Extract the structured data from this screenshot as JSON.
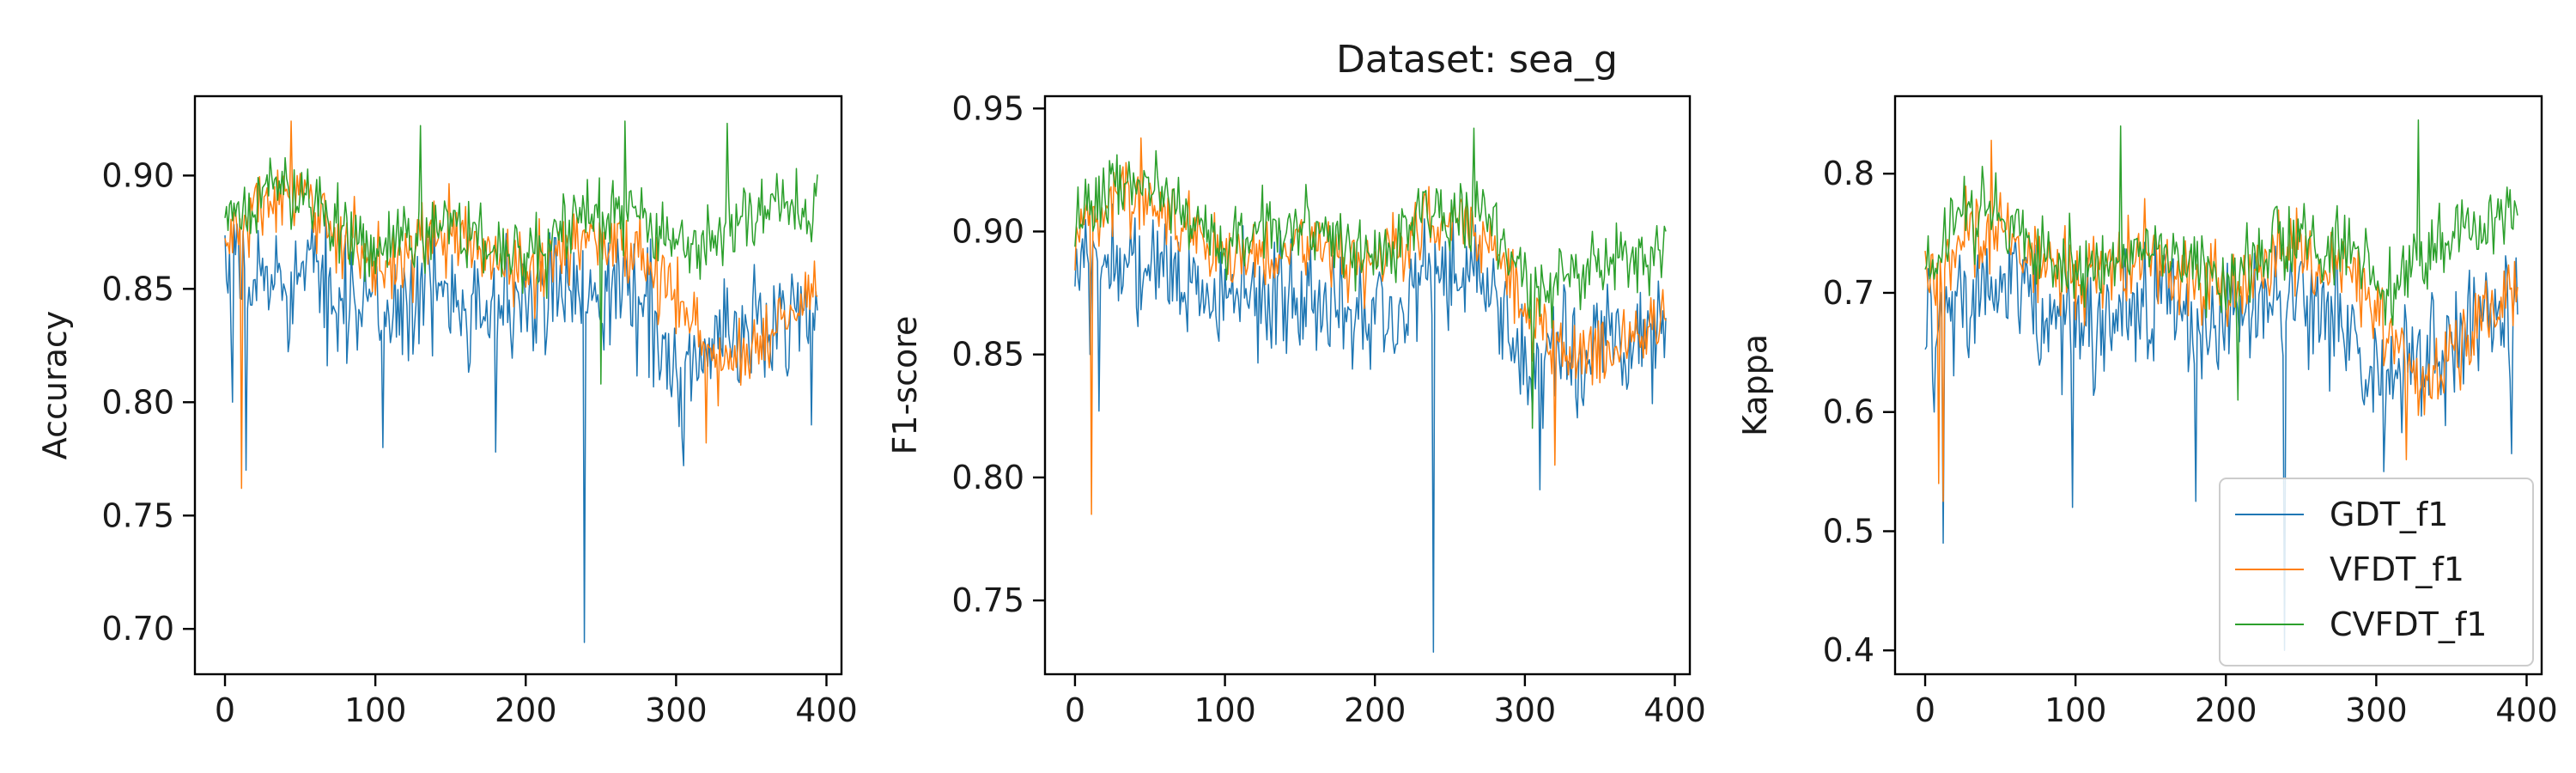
{
  "figure": {
    "title": "Dataset: sea_g"
  },
  "legend": {
    "placement": "lower-right of third panel",
    "entries": [
      {
        "label": "GDT_f1",
        "color": "#1f77b4"
      },
      {
        "label": "VFDT_f1",
        "color": "#ff7f0e"
      },
      {
        "label": "CVFDT_f1",
        "color": "#2ca02c"
      }
    ]
  },
  "chart_data": [
    {
      "type": "line",
      "ylabel": "Accuracy",
      "xlim": [
        -20,
        410
      ],
      "ylim": [
        0.68,
        0.935
      ],
      "xticks": [
        0,
        100,
        200,
        300,
        400
      ],
      "xtick_labels": [
        "0",
        "100",
        "200",
        "300",
        "400"
      ],
      "yticks": [
        0.7,
        0.75,
        0.8,
        0.85,
        0.9
      ],
      "ytick_labels": [
        "0.70",
        "0.75",
        "0.80",
        "0.85",
        "0.90"
      ],
      "n_points": 395,
      "series": [
        {
          "label": "GDT_f1",
          "color": "#1f77b4",
          "base": [
            [
              0,
              0.85
            ],
            [
              30,
              0.855
            ],
            [
              60,
              0.855
            ],
            [
              100,
              0.84
            ],
            [
              150,
              0.85
            ],
            [
              200,
              0.84
            ],
            [
              240,
              0.855
            ],
            [
              280,
              0.845
            ],
            [
              300,
              0.81
            ],
            [
              340,
              0.83
            ],
            [
              394,
              0.845
            ]
          ],
          "noise": 0.025,
          "lo": 0.77,
          "hi": 0.915,
          "spikes": [
            [
              5,
              0.8
            ],
            [
              14,
              0.77
            ],
            [
              105,
              0.78
            ],
            [
              180,
              0.778
            ],
            [
              239,
              0.694
            ],
            [
              305,
              0.772
            ],
            [
              390,
              0.79
            ]
          ]
        },
        {
          "label": "VFDT_f1",
          "color": "#ff7f0e",
          "base": [
            [
              0,
              0.87
            ],
            [
              30,
              0.89
            ],
            [
              60,
              0.885
            ],
            [
              100,
              0.86
            ],
            [
              150,
              0.875
            ],
            [
              200,
              0.855
            ],
            [
              240,
              0.875
            ],
            [
              280,
              0.865
            ],
            [
              305,
              0.84
            ],
            [
              330,
              0.815
            ],
            [
              360,
              0.83
            ],
            [
              394,
              0.85
            ]
          ],
          "noise": 0.016,
          "lo": 0.78,
          "hi": 0.925,
          "spikes": [
            [
              11,
              0.762
            ],
            [
              44,
              0.924
            ],
            [
              320,
              0.782
            ]
          ]
        },
        {
          "label": "CVFDT_f1",
          "color": "#2ca02c",
          "base": [
            [
              0,
              0.875
            ],
            [
              30,
              0.895
            ],
            [
              60,
              0.89
            ],
            [
              100,
              0.865
            ],
            [
              150,
              0.88
            ],
            [
              200,
              0.86
            ],
            [
              240,
              0.885
            ],
            [
              280,
              0.88
            ],
            [
              305,
              0.865
            ],
            [
              340,
              0.88
            ],
            [
              394,
              0.885
            ]
          ],
          "noise": 0.015,
          "lo": 0.8,
          "hi": 0.925,
          "spikes": [
            [
              130,
              0.922
            ],
            [
              250,
              0.808
            ],
            [
              266,
              0.924
            ],
            [
              334,
              0.923
            ]
          ]
        }
      ]
    },
    {
      "type": "line",
      "ylabel": "F1-score",
      "xlim": [
        -20,
        410
      ],
      "ylim": [
        0.72,
        0.955
      ],
      "xticks": [
        0,
        100,
        200,
        300,
        400
      ],
      "xtick_labels": [
        "0",
        "100",
        "200",
        "300",
        "400"
      ],
      "yticks": [
        0.75,
        0.8,
        0.85,
        0.9,
        0.95
      ],
      "ytick_labels": [
        "0.75",
        "0.80",
        "0.85",
        "0.90",
        "0.95"
      ],
      "n_points": 395,
      "series": [
        {
          "label": "GDT_f1",
          "color": "#1f77b4",
          "base": [
            [
              0,
              0.885
            ],
            [
              30,
              0.89
            ],
            [
              60,
              0.885
            ],
            [
              100,
              0.87
            ],
            [
              150,
              0.875
            ],
            [
              200,
              0.865
            ],
            [
              240,
              0.885
            ],
            [
              280,
              0.875
            ],
            [
              300,
              0.845
            ],
            [
              340,
              0.855
            ],
            [
              394,
              0.86
            ]
          ],
          "noise": 0.022,
          "lo": 0.8,
          "hi": 0.93,
          "spikes": [
            [
              10,
              0.85
            ],
            [
              16,
              0.827
            ],
            [
              239,
              0.729
            ],
            [
              310,
              0.795
            ],
            [
              385,
              0.83
            ]
          ]
        },
        {
          "label": "VFDT_f1",
          "color": "#ff7f0e",
          "base": [
            [
              0,
              0.9
            ],
            [
              30,
              0.915
            ],
            [
              60,
              0.91
            ],
            [
              100,
              0.89
            ],
            [
              150,
              0.895
            ],
            [
              200,
              0.885
            ],
            [
              240,
              0.905
            ],
            [
              280,
              0.895
            ],
            [
              305,
              0.865
            ],
            [
              330,
              0.85
            ],
            [
              360,
              0.855
            ],
            [
              394,
              0.865
            ]
          ],
          "noise": 0.014,
          "lo": 0.8,
          "hi": 0.94,
          "spikes": [
            [
              11,
              0.785
            ],
            [
              44,
              0.938
            ],
            [
              320,
              0.805
            ]
          ]
        },
        {
          "label": "CVFDT_f1",
          "color": "#2ca02c",
          "base": [
            [
              0,
              0.905
            ],
            [
              30,
              0.92
            ],
            [
              60,
              0.915
            ],
            [
              100,
              0.895
            ],
            [
              150,
              0.905
            ],
            [
              200,
              0.89
            ],
            [
              240,
              0.91
            ],
            [
              280,
              0.905
            ],
            [
              305,
              0.875
            ],
            [
              340,
              0.885
            ],
            [
              394,
              0.89
            ]
          ],
          "noise": 0.013,
          "lo": 0.85,
          "hi": 0.942,
          "spikes": [
            [
              266,
              0.942
            ],
            [
              305,
              0.82
            ]
          ]
        }
      ]
    },
    {
      "type": "line",
      "ylabel": "Kappa",
      "xlim": [
        -20,
        410
      ],
      "ylim": [
        0.38,
        0.865
      ],
      "xticks": [
        0,
        100,
        200,
        300,
        400
      ],
      "xtick_labels": [
        "0",
        "100",
        "200",
        "300",
        "400"
      ],
      "yticks": [
        0.4,
        0.5,
        0.6,
        0.7,
        0.8
      ],
      "ytick_labels": [
        "0.4",
        "0.5",
        "0.6",
        "0.7",
        "0.8"
      ],
      "n_points": 395,
      "series": [
        {
          "label": "GDT_f1",
          "color": "#1f77b4",
          "base": [
            [
              0,
              0.68
            ],
            [
              30,
              0.7
            ],
            [
              60,
              0.7
            ],
            [
              100,
              0.67
            ],
            [
              150,
              0.69
            ],
            [
              200,
              0.67
            ],
            [
              240,
              0.69
            ],
            [
              280,
              0.68
            ],
            [
              300,
              0.62
            ],
            [
              340,
              0.66
            ],
            [
              394,
              0.69
            ]
          ],
          "noise": 0.05,
          "lo": 0.52,
          "hi": 0.8,
          "spikes": [
            [
              6,
              0.6
            ],
            [
              12,
              0.49
            ],
            [
              98,
              0.52
            ],
            [
              180,
              0.525
            ],
            [
              239,
              0.4
            ],
            [
              305,
              0.55
            ],
            [
              390,
              0.565
            ]
          ]
        },
        {
          "label": "VFDT_f1",
          "color": "#ff7f0e",
          "base": [
            [
              0,
              0.71
            ],
            [
              30,
              0.75
            ],
            [
              60,
              0.745
            ],
            [
              100,
              0.71
            ],
            [
              150,
              0.735
            ],
            [
              200,
              0.7
            ],
            [
              240,
              0.735
            ],
            [
              280,
              0.72
            ],
            [
              305,
              0.67
            ],
            [
              330,
              0.62
            ],
            [
              360,
              0.665
            ],
            [
              394,
              0.7
            ]
          ],
          "noise": 0.032,
          "lo": 0.55,
          "hi": 0.83,
          "spikes": [
            [
              9,
              0.54
            ],
            [
              12,
              0.525
            ],
            [
              44,
              0.828
            ],
            [
              320,
              0.56
            ]
          ]
        },
        {
          "label": "CVFDT_f1",
          "color": "#2ca02c",
          "base": [
            [
              0,
              0.72
            ],
            [
              30,
              0.765
            ],
            [
              60,
              0.755
            ],
            [
              100,
              0.72
            ],
            [
              150,
              0.74
            ],
            [
              200,
              0.71
            ],
            [
              240,
              0.745
            ],
            [
              280,
              0.74
            ],
            [
              305,
              0.7
            ],
            [
              340,
              0.745
            ],
            [
              394,
              0.765
            ]
          ],
          "noise": 0.03,
          "lo": 0.6,
          "hi": 0.845,
          "spikes": [
            [
              130,
              0.84
            ],
            [
              208,
              0.61
            ],
            [
              328,
              0.845
            ]
          ]
        }
      ]
    }
  ]
}
